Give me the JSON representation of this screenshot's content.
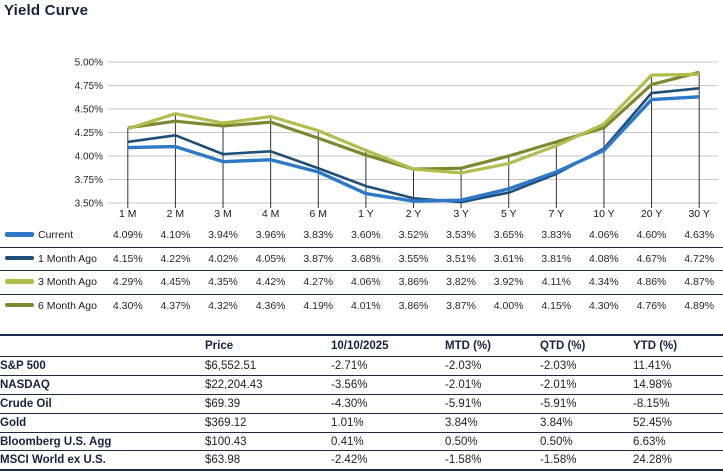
{
  "title": "Yield Curve",
  "colors": {
    "navy_text": "#17233c",
    "table_line": "#1b2b4a",
    "grid_line": "#c8c8c8",
    "drop_line": "#333333",
    "value_text": "#262626"
  },
  "chart_data": [
    {
      "type": "line",
      "title": "Yield Curve",
      "xlabel": "",
      "ylabel": "",
      "ylim": [
        3.5,
        5.0
      ],
      "y_tick_step": 0.25,
      "y_tick_labels": [
        "5.00%",
        "4.75%",
        "4.50%",
        "4.25%",
        "4.00%",
        "3.75%",
        "3.50%"
      ],
      "grid": "horizontal",
      "category_drop_lines": true,
      "legend_position": "left-table-with-values",
      "categories": [
        "1 M",
        "2 M",
        "3 M",
        "4 M",
        "6 M",
        "1 Y",
        "2 Y",
        "3 Y",
        "5 Y",
        "7 Y",
        "10 Y",
        "20 Y",
        "30 Y"
      ],
      "series": [
        {
          "name": "Current",
          "color": "#2e79c7",
          "values": [
            4.09,
            4.1,
            3.94,
            3.96,
            3.83,
            3.6,
            3.52,
            3.53,
            3.65,
            3.83,
            4.06,
            4.6,
            4.63
          ]
        },
        {
          "name": "1 Month Ago",
          "color": "#1f4e79",
          "values": [
            4.15,
            4.22,
            4.02,
            4.05,
            3.87,
            3.68,
            3.55,
            3.51,
            3.61,
            3.81,
            4.08,
            4.67,
            4.72
          ]
        },
        {
          "name": "3 Month Ago",
          "color": "#b3bd4e",
          "values": [
            4.29,
            4.45,
            4.35,
            4.42,
            4.27,
            4.06,
            3.86,
            3.82,
            3.92,
            4.11,
            4.34,
            4.86,
            4.87
          ]
        },
        {
          "name": "6 Month Ago",
          "color": "#7d8931",
          "values": [
            4.3,
            4.37,
            4.32,
            4.36,
            4.19,
            4.01,
            3.86,
            3.87,
            4.0,
            4.15,
            4.3,
            4.76,
            4.89
          ]
        }
      ]
    },
    {
      "type": "table",
      "headers": [
        "",
        "Price",
        "10/10/2025",
        "MTD (%)",
        "QTD (%)",
        "YTD (%)"
      ],
      "rows": [
        [
          "S&P 500",
          "$6,552.51",
          "-2.71%",
          "-2.03%",
          "-2.03%",
          "11.41%"
        ],
        [
          "NASDAQ",
          "$22,204.43",
          "-3.56%",
          "-2.01%",
          "-2.01%",
          "14.98%"
        ],
        [
          "Crude Oil",
          "$69.39",
          "-4.30%",
          "-5.91%",
          "-5.91%",
          "-8.15%"
        ],
        [
          "Gold",
          "$369.12",
          "1.01%",
          "3.84%",
          "3.84%",
          "52.45%"
        ],
        [
          "Bloomberg U.S. Agg",
          "$100.43",
          "0.41%",
          "0.50%",
          "0.50%",
          "6.63%"
        ],
        [
          "MSCI World ex U.S.",
          "$63.98",
          "-2.42%",
          "-1.58%",
          "-1.58%",
          "24.28%"
        ]
      ]
    }
  ]
}
